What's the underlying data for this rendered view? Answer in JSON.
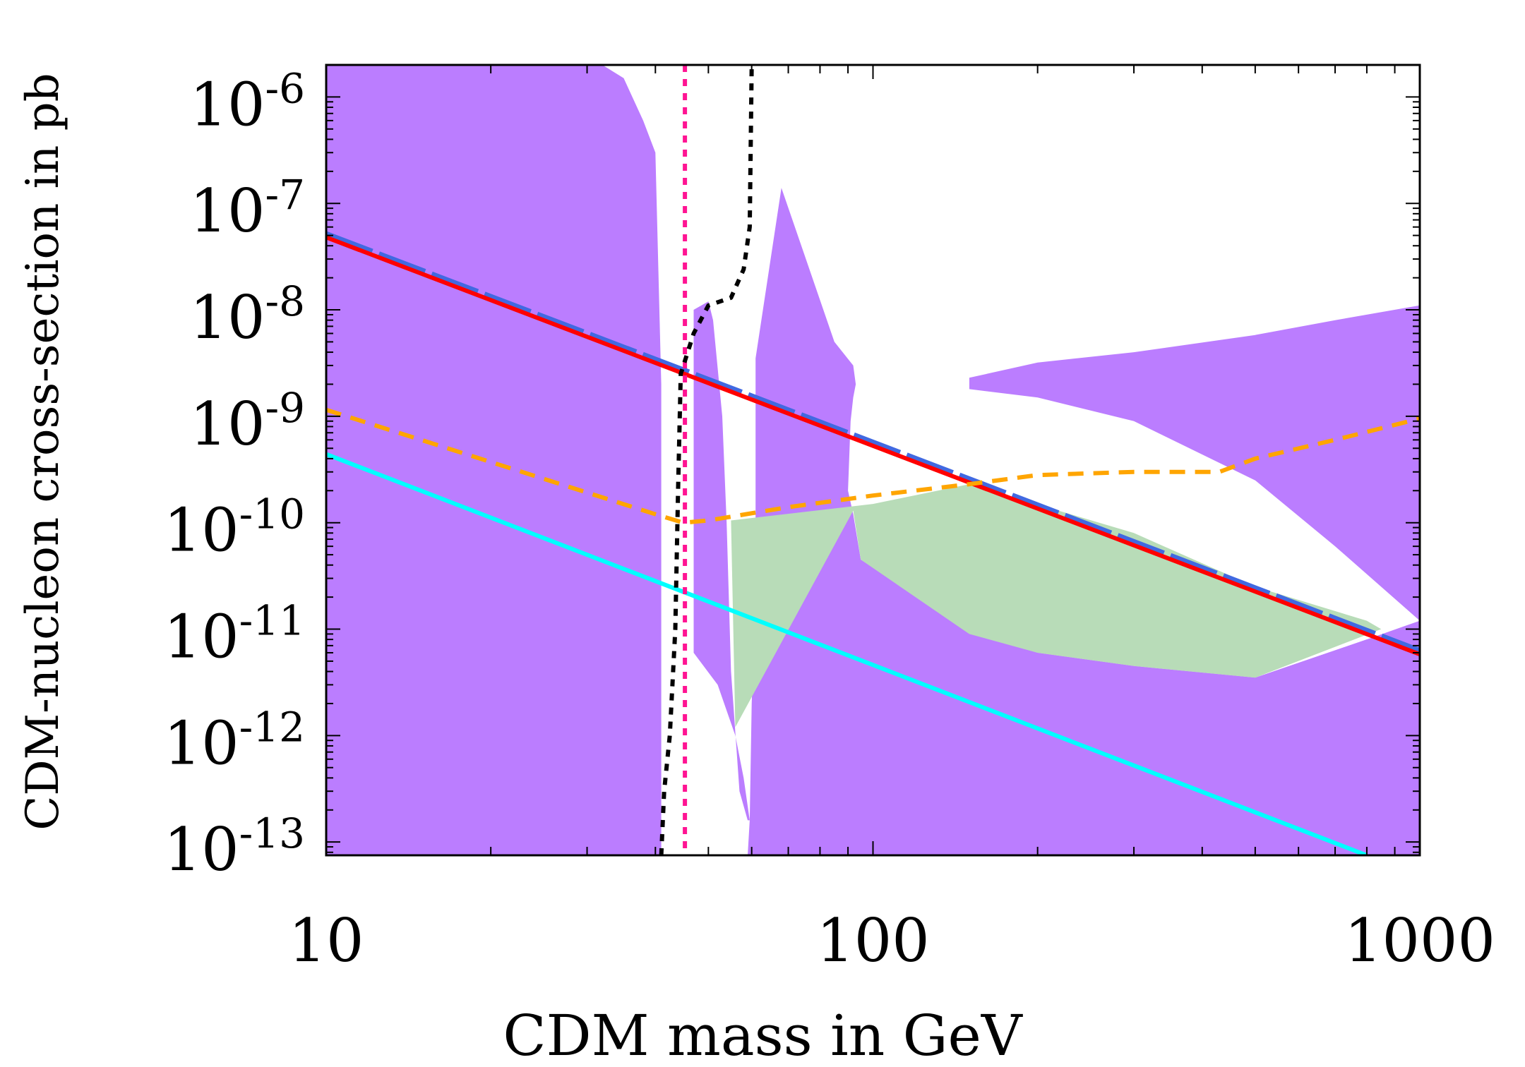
{
  "chart_data": {
    "type": "line",
    "title": "",
    "xlabel": "CDM mass in GeV",
    "ylabel": "CDM-nucleon cross-section in pb",
    "xscale": "log",
    "yscale": "log",
    "xlim": [
      10,
      1000
    ],
    "ylim": [
      7.5e-14,
      2e-06
    ],
    "grid": false,
    "x_ticks": [
      {
        "value": 10,
        "label": "10"
      },
      {
        "value": 100,
        "label": "100"
      },
      {
        "value": 1000,
        "label": "1000"
      }
    ],
    "y_ticks": [
      {
        "exp": -6,
        "base": "10",
        "sup": "-6"
      },
      {
        "exp": -7,
        "base": "10",
        "sup": "-7"
      },
      {
        "exp": -8,
        "base": "10",
        "sup": "-8"
      },
      {
        "exp": -9,
        "base": "10",
        "sup": "-9"
      },
      {
        "exp": -10,
        "base": "10",
        "sup": "-10"
      },
      {
        "exp": -11,
        "base": "10",
        "sup": "-11"
      },
      {
        "exp": -12,
        "base": "10",
        "sup": "-12"
      },
      {
        "exp": -13,
        "base": "10",
        "sup": "-13"
      }
    ],
    "regions": [
      {
        "name": "allowed-region-purple-left",
        "color": "#bb7dff",
        "points": [
          [
            10,
            2e-06
          ],
          [
            32,
            2e-06
          ],
          [
            35,
            1.5e-06
          ],
          [
            38,
            6e-07
          ],
          [
            40,
            3e-07
          ],
          [
            41,
            2e-09
          ],
          [
            41,
            7.5e-14
          ],
          [
            10,
            7.5e-14
          ]
        ]
      },
      {
        "name": "allowed-region-purple-narrow",
        "color": "#bb7dff",
        "points": [
          [
            47,
            1e-08
          ],
          [
            50,
            1.2e-08
          ],
          [
            51,
            8e-09
          ],
          [
            53,
            1e-09
          ],
          [
            54,
            1e-10
          ],
          [
            55,
            4e-12
          ],
          [
            57,
            3e-13
          ],
          [
            59,
            1.6e-13
          ],
          [
            59.5,
            1.6e-13
          ],
          [
            58,
            4e-13
          ],
          [
            56,
            1e-12
          ],
          [
            52,
            3e-12
          ],
          [
            47,
            6e-12
          ]
        ]
      },
      {
        "name": "allowed-region-purple-lower",
        "color": "#bb7dff",
        "points": [
          [
            92,
            7.5e-14
          ],
          [
            1000,
            7.5e-14
          ],
          [
            1000,
            1.1e-11
          ],
          [
            800,
            8e-12
          ],
          [
            500,
            3.5e-12
          ],
          [
            300,
            4.5e-12
          ],
          [
            200,
            6e-12
          ],
          [
            150,
            9e-12
          ],
          [
            95,
            3.5e-11
          ],
          [
            92,
            1e-10
          ]
        ]
      },
      {
        "name": "allowed-region-purple-spike",
        "color": "#bb7dff",
        "points": [
          [
            61,
            3.5e-09
          ],
          [
            68,
            1.4e-07
          ],
          [
            85,
            5e-09
          ],
          [
            92,
            3e-09
          ],
          [
            93,
            2e-09
          ],
          [
            92,
            1.5e-09
          ],
          [
            91,
            9e-10
          ],
          [
            90,
            2e-10
          ],
          [
            92,
            1.2e-10
          ],
          [
            95,
            4.5e-11
          ],
          [
            150,
            1e-11
          ],
          [
            200,
            6e-12
          ],
          [
            300,
            4.5e-12
          ],
          [
            500,
            3.5e-12
          ],
          [
            800,
            8e-12
          ],
          [
            1000,
            1.2e-11
          ],
          [
            700,
            6e-11
          ],
          [
            500,
            2.5e-10
          ],
          [
            300,
            9e-10
          ],
          [
            200,
            1.5e-09
          ],
          [
            150,
            1.8e-09
          ],
          [
            150,
            2.3e-09
          ],
          [
            200,
            3.2e-09
          ],
          [
            300,
            4e-09
          ],
          [
            500,
            5.8e-09
          ],
          [
            700,
            8e-09
          ],
          [
            1000,
            1.1e-08
          ],
          [
            1000,
            7.5e-14
          ],
          [
            59,
            7.5e-14
          ],
          [
            59.5,
            1.6e-13
          ],
          [
            60,
            2e-12
          ],
          [
            61,
            2e-11
          ],
          [
            61,
            2e-10
          ]
        ]
      },
      {
        "name": "green-shaded-region",
        "color": "#b8dcb8",
        "points": [
          [
            55,
            1.05e-10
          ],
          [
            100,
            1.5e-10
          ],
          [
            150,
            2.3e-10
          ],
          [
            300,
            8e-11
          ],
          [
            500,
            2.5e-11
          ],
          [
            800,
            1.2e-11
          ],
          [
            850,
            1e-11
          ],
          [
            500,
            3.5e-12
          ],
          [
            300,
            4.5e-12
          ],
          [
            200,
            6e-12
          ],
          [
            150,
            9e-12
          ],
          [
            95,
            4.5e-11
          ],
          [
            92,
            1.3e-10
          ],
          [
            56,
            1.2e-12
          ]
        ]
      }
    ],
    "series": [
      {
        "name": "blue-dashed-limit",
        "color": "#4169e1",
        "style": "long-dash",
        "width": 7,
        "points": [
          [
            10,
            5.2e-08
          ],
          [
            1000,
            6.3e-12
          ]
        ]
      },
      {
        "name": "red-solid-limit",
        "color": "#ff0000",
        "style": "solid",
        "width": 6,
        "points": [
          [
            10,
            4.8e-08
          ],
          [
            1000,
            5.8e-12
          ]
        ]
      },
      {
        "name": "cyan-solid-line",
        "color": "#00ffff",
        "style": "solid",
        "width": 6,
        "points": [
          [
            10,
            4.4e-10
          ],
          [
            800,
            7.5e-14
          ]
        ]
      },
      {
        "name": "orange-dashed-line",
        "color": "#ffa500",
        "style": "short-dash",
        "width": 6,
        "points": [
          [
            10,
            1.15e-09
          ],
          [
            40,
            1.2e-10
          ],
          [
            45,
            1e-10
          ],
          [
            50,
            1.05e-10
          ],
          [
            70,
            1.4e-10
          ],
          [
            100,
            1.8e-10
          ],
          [
            150,
            2.3e-10
          ],
          [
            200,
            2.8e-10
          ],
          [
            300,
            3e-10
          ],
          [
            400,
            3e-10
          ],
          [
            430,
            3e-10
          ],
          [
            500,
            4e-10
          ],
          [
            700,
            6e-10
          ],
          [
            1000,
            9.5e-10
          ]
        ]
      },
      {
        "name": "magenta-dotted-vertical",
        "color": "#ff1493",
        "style": "dot",
        "width": 6,
        "points": [
          [
            45.3,
            2e-06
          ],
          [
            45.3,
            7.5e-14
          ]
        ]
      },
      {
        "name": "black-dotted-curve",
        "color": "#000000",
        "style": "dot",
        "width": 6,
        "points": [
          [
            41,
            7.5e-14
          ],
          [
            41.5,
            3e-13
          ],
          [
            42.5,
            1e-12
          ],
          [
            43.5,
            1e-11
          ],
          [
            44,
            2e-10
          ],
          [
            44.5,
            2.5e-09
          ],
          [
            47,
            6e-09
          ],
          [
            50,
            1.1e-08
          ],
          [
            55,
            1.3e-08
          ],
          [
            58,
            2.4e-08
          ],
          [
            59.5,
            6e-08
          ],
          [
            60,
            2e-06
          ]
        ]
      }
    ]
  }
}
